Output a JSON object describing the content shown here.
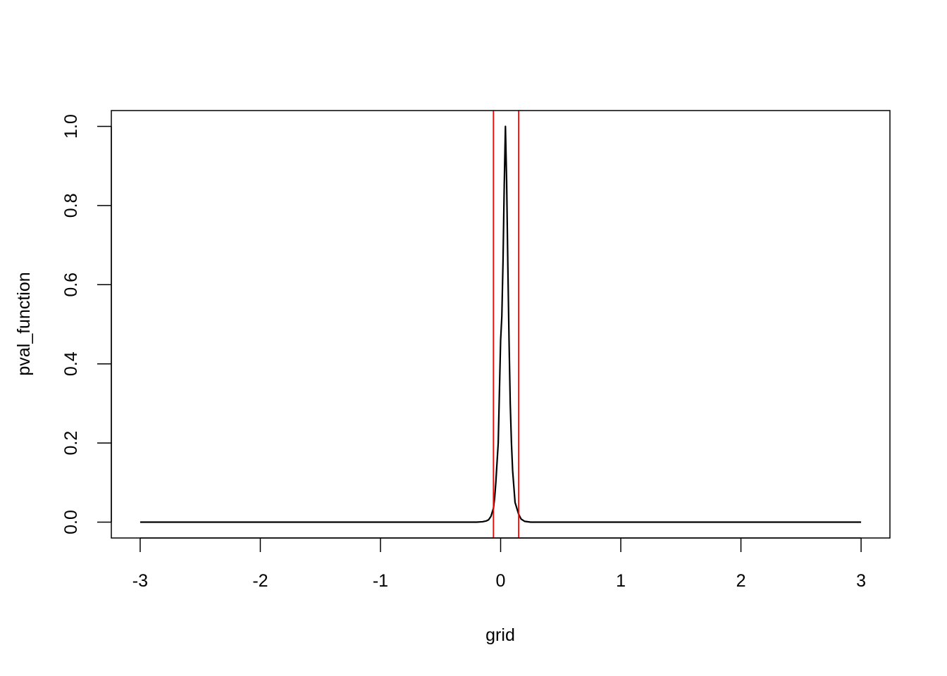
{
  "chart_data": {
    "type": "line",
    "title": "",
    "xlabel": "grid",
    "ylabel": "pval_function",
    "xlim": [
      -3.24,
      3.24
    ],
    "ylim": [
      -0.04,
      1.04
    ],
    "xticks": [
      -3,
      -2,
      -1,
      0,
      1,
      2,
      3
    ],
    "xtick_labels": [
      "-3",
      "-2",
      "-1",
      "0",
      "1",
      "2",
      "3"
    ],
    "yticks": [
      0.0,
      0.2,
      0.4,
      0.6,
      0.8,
      1.0
    ],
    "ytick_labels": [
      "0.0",
      "0.2",
      "0.4",
      "0.6",
      "0.8",
      "1.0"
    ],
    "grid": false,
    "legend": "none",
    "series": [
      {
        "color": "#000000",
        "x": [
          -3.0,
          -0.5,
          -0.2,
          -0.15,
          -0.12,
          -0.1,
          -0.08,
          -0.06,
          -0.05,
          -0.04,
          -0.02,
          -0.01,
          0.0,
          0.01,
          0.02,
          0.03,
          0.04,
          0.05,
          0.06,
          0.07,
          0.08,
          0.09,
          0.1,
          0.11,
          0.12,
          0.14,
          0.15,
          0.17,
          0.2,
          0.25,
          0.5,
          3.0
        ],
        "y": [
          0.0,
          0.0,
          0.0,
          0.001,
          0.003,
          0.006,
          0.015,
          0.035,
          0.06,
          0.1,
          0.2,
          0.33,
          0.46,
          0.52,
          0.66,
          0.85,
          1.0,
          0.86,
          0.65,
          0.46,
          0.3,
          0.2,
          0.13,
          0.09,
          0.05,
          0.03,
          0.02,
          0.008,
          0.002,
          0.0,
          0.0,
          0.0
        ]
      }
    ],
    "vlines": [
      {
        "x": -0.06,
        "color": "#ff0000"
      },
      {
        "x": 0.15,
        "color": "#ff0000"
      }
    ]
  }
}
